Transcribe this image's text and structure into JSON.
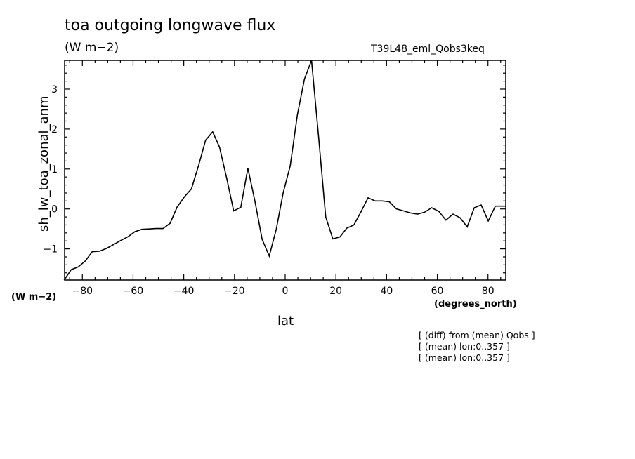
{
  "chart_data": {
    "type": "line",
    "title": "toa outgoing longwave flux",
    "subtitle": "(W m−2)",
    "run_label": "T39L48_eml_Qobs3keq",
    "ylabel": "sh_lw_toa_zonal_anm",
    "yunits": "(W m−2)",
    "xlabel": "lat",
    "xunits": "(degrees_north)",
    "xlim": [
      -87,
      87
    ],
    "ylim": [
      -1.78,
      3.72
    ],
    "xticks": [
      -80,
      -60,
      -40,
      -20,
      0,
      20,
      40,
      60,
      80
    ],
    "xtick_labels": [
      "−80",
      "−60",
      "−40",
      "−20",
      "0",
      "20",
      "40",
      "60",
      "80"
    ],
    "yticks": [
      -1,
      0,
      1,
      2,
      3
    ],
    "ytick_labels": [
      "−1",
      "0",
      "1",
      "2",
      "3"
    ],
    "grid": false,
    "notes": [
      "[ (diff) from (mean) Qobs ]",
      "[ (mean) lon:0..357 ]",
      "[ (mean) lon:0..357 ]"
    ],
    "series": [
      {
        "x": [
          -87.2,
          -84.4,
          -81.6,
          -78.8,
          -76.1,
          -73.3,
          -70.5,
          -67.7,
          -64.9,
          -62.1,
          -59.3,
          -56.5,
          -53.7,
          -51.0,
          -48.2,
          -45.4,
          -42.6,
          -39.8,
          -37.0,
          -34.2,
          -31.4,
          -28.6,
          -25.9,
          -23.1,
          -20.3,
          -17.5,
          -14.7,
          -11.9,
          -9.1,
          -6.3,
          -3.5,
          -0.8,
          2.0,
          4.8,
          7.6,
          10.4,
          13.2,
          16.0,
          18.8,
          21.6,
          24.3,
          27.1,
          29.9,
          32.7,
          35.5,
          38.3,
          41.1,
          43.9,
          46.7,
          49.4,
          52.2,
          55.0,
          57.8,
          60.6,
          63.4,
          66.2,
          69.0,
          71.8,
          74.6,
          77.3,
          80.1,
          82.9,
          85.7,
          87.2
        ],
        "y": [
          -1.78,
          -1.52,
          -1.45,
          -1.3,
          -1.07,
          -1.06,
          -0.99,
          -0.89,
          -0.79,
          -0.7,
          -0.57,
          -0.51,
          -0.5,
          -0.49,
          -0.49,
          -0.36,
          0.05,
          0.3,
          0.5,
          1.08,
          1.72,
          1.93,
          1.55,
          0.78,
          -0.05,
          0.04,
          1.02,
          0.18,
          -0.76,
          -1.18,
          -0.5,
          0.4,
          1.08,
          2.35,
          3.25,
          3.72,
          1.8,
          -0.2,
          -0.75,
          -0.7,
          -0.48,
          -0.4,
          -0.07,
          0.28,
          0.2,
          0.2,
          0.18,
          0.0,
          -0.05,
          -0.1,
          -0.13,
          -0.08,
          0.03,
          -0.06,
          -0.28,
          -0.13,
          -0.22,
          -0.45,
          0.03,
          0.1,
          -0.3,
          0.07,
          0.07,
          0.07
        ]
      }
    ]
  }
}
